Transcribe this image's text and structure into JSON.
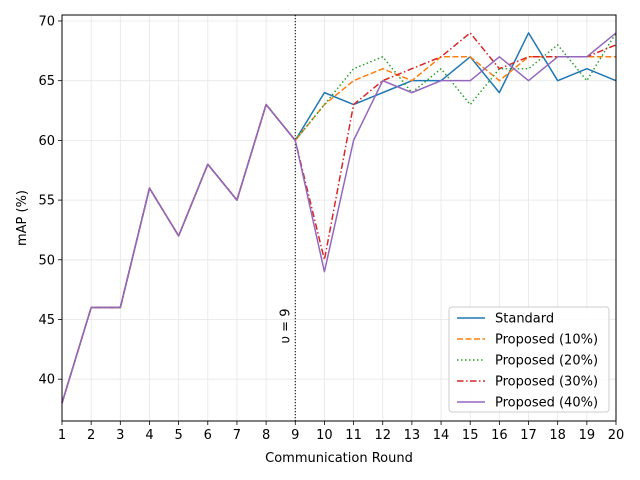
{
  "chart_data": {
    "type": "line",
    "xlabel": "Communication Round",
    "ylabel": "mAP (%)",
    "xlim": [
      1,
      20
    ],
    "ylim": [
      36.5,
      70.5
    ],
    "grid": true,
    "legend_position": "lower-right",
    "x_ticks": [
      "1",
      "2",
      "3",
      "4",
      "5",
      "6",
      "7",
      "8",
      "9",
      "10",
      "11",
      "12",
      "13",
      "14",
      "15",
      "16",
      "17",
      "18",
      "19",
      "20"
    ],
    "y_ticks": [
      "40",
      "45",
      "50",
      "55",
      "60",
      "65",
      "70"
    ],
    "x": [
      1,
      2,
      3,
      4,
      5,
      6,
      7,
      8,
      9,
      10,
      11,
      12,
      13,
      14,
      15,
      16,
      17,
      18,
      19,
      20
    ],
    "annotation": {
      "text": "υ = 9",
      "x": 9
    },
    "series": [
      {
        "name": "Standard",
        "color": "#1f77b4",
        "dash": "solid",
        "values": [
          38,
          46,
          46,
          56,
          52,
          58,
          55,
          63,
          60,
          64,
          63,
          64,
          65,
          65,
          67,
          64,
          69,
          65,
          66,
          65
        ]
      },
      {
        "name": "Proposed (10%)",
        "color": "#ff7f0e",
        "dash": "dashed",
        "values": [
          38,
          46,
          46,
          56,
          52,
          58,
          55,
          63,
          60,
          63,
          65,
          66,
          65,
          67,
          67,
          65,
          67,
          67,
          67,
          67
        ]
      },
      {
        "name": "Proposed (20%)",
        "color": "#2ca02c",
        "dash": "dotted",
        "values": [
          38,
          46,
          46,
          56,
          52,
          58,
          55,
          63,
          60,
          63,
          66,
          67,
          64,
          66,
          63,
          66,
          66,
          68,
          65,
          69
        ]
      },
      {
        "name": "Proposed (30%)",
        "color": "#d62728",
        "dash": "dashdot",
        "values": [
          38,
          46,
          46,
          56,
          52,
          58,
          55,
          63,
          60,
          50,
          63,
          65,
          66,
          67,
          69,
          66,
          67,
          67,
          67,
          68
        ]
      },
      {
        "name": "Proposed (40%)",
        "color": "#9467bd",
        "dash": "solid",
        "values": [
          38,
          46,
          46,
          56,
          52,
          58,
          55,
          63,
          60,
          49,
          60,
          65,
          64,
          65,
          65,
          67,
          65,
          67,
          67,
          69
        ]
      }
    ]
  }
}
